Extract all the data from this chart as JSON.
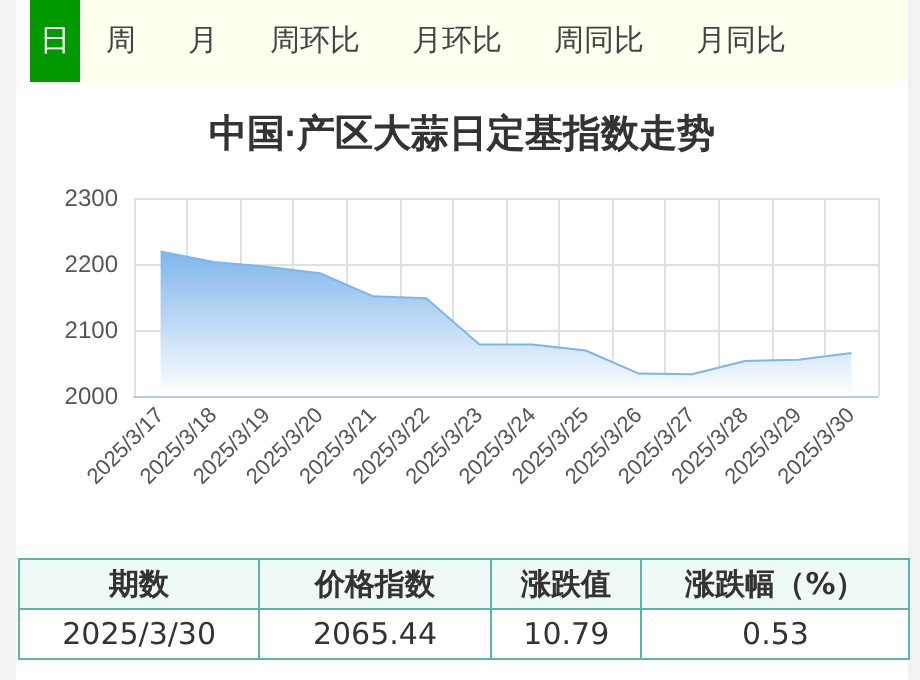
{
  "chart_data": {
    "type": "area",
    "title": "中国·产区大蒜日定基指数走势",
    "categories": [
      "2025/3/17",
      "2025/3/18",
      "2025/3/19",
      "2025/3/20",
      "2025/3/21",
      "2025/3/22",
      "2025/3/23",
      "2025/3/24",
      "2025/3/25",
      "2025/3/26",
      "2025/3/27",
      "2025/3/28",
      "2025/3/29",
      "2025/3/30"
    ],
    "values": [
      2219,
      2203,
      2196,
      2186,
      2151,
      2148,
      2078,
      2078,
      2069,
      2034,
      2033,
      2053,
      2055,
      2065
    ],
    "color": "#7eb6ec",
    "ylim": [
      2000,
      2300
    ],
    "yticks": [
      2000,
      2100,
      2200,
      2300
    ],
    "grid": true,
    "marker": "none",
    "annotations": [
      "日",
      "周",
      "月",
      "周环比",
      "月环比",
      "周同比",
      "月同比",
      "期数",
      "价格指数",
      "涨跌值",
      "涨跌幅（%）",
      "2025/3/30",
      "2065.44",
      "10.79",
      "0.53"
    ]
  }
}
